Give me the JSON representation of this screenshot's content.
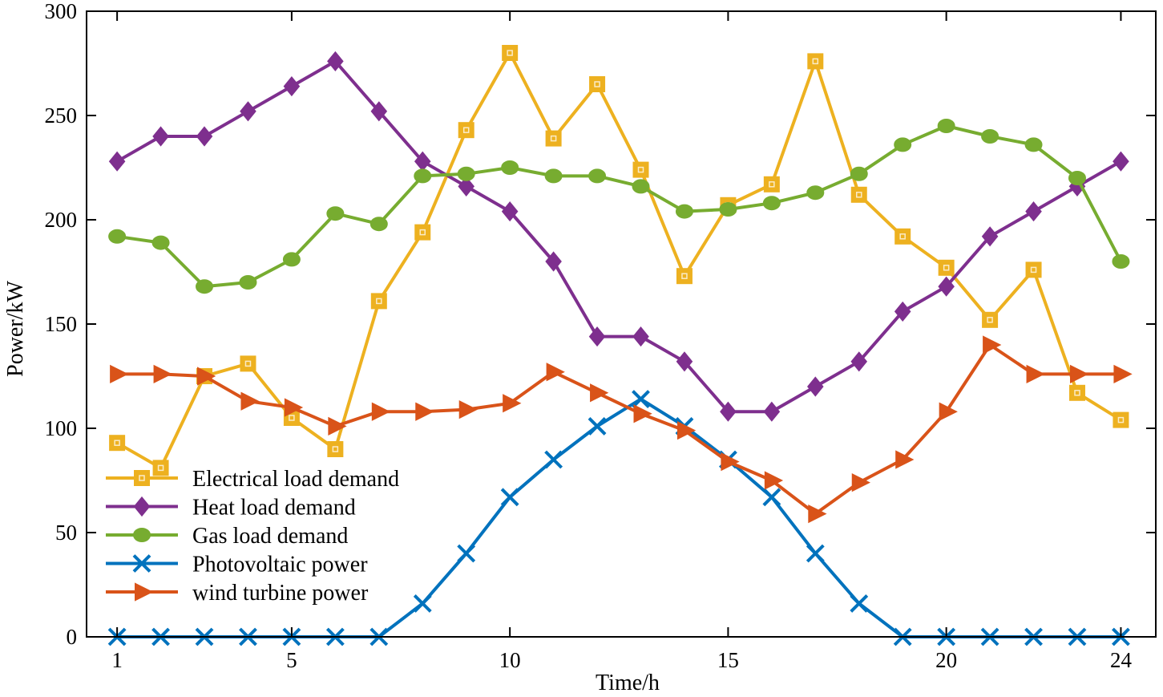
{
  "chart_data": {
    "type": "line",
    "title": "",
    "xlabel": "Time/h",
    "ylabel": "Power/kW",
    "x": [
      1,
      2,
      3,
      4,
      5,
      6,
      7,
      8,
      9,
      10,
      11,
      12,
      13,
      14,
      15,
      16,
      17,
      18,
      19,
      20,
      21,
      22,
      23,
      24
    ],
    "xlim": [
      0.3,
      24.8
    ],
    "ylim": [
      0,
      300
    ],
    "xticks": [
      1,
      5,
      10,
      15,
      20,
      24
    ],
    "yticks": [
      0,
      50,
      100,
      150,
      200,
      250,
      300
    ],
    "grid": false,
    "legend_position": "bottom-left",
    "series": [
      {
        "name": "Electrical load demand",
        "color": "#EDB120",
        "marker": "square",
        "values": [
          93,
          81,
          125,
          131,
          105,
          90,
          161,
          194,
          243,
          280,
          239,
          265,
          224,
          173,
          207,
          217,
          276,
          212,
          192,
          177,
          152,
          176,
          117,
          104
        ]
      },
      {
        "name": "Heat load demand",
        "color": "#7E2F8E",
        "marker": "diamond",
        "values": [
          228,
          240,
          240,
          252,
          264,
          276,
          252,
          228,
          216,
          204,
          180,
          144,
          144,
          132,
          108,
          108,
          120,
          132,
          156,
          168,
          192,
          204,
          216,
          228
        ]
      },
      {
        "name": "Gas load demand",
        "color": "#77AC30",
        "marker": "circle",
        "values": [
          192,
          189,
          168,
          170,
          181,
          203,
          198,
          221,
          222,
          225,
          221,
          221,
          216,
          204,
          205,
          208,
          213,
          222,
          236,
          245,
          240,
          236,
          220,
          180
        ]
      },
      {
        "name": "Photovoltaic power",
        "color": "#0072BD",
        "marker": "x",
        "values": [
          0,
          0,
          0,
          0,
          0,
          0,
          0,
          16,
          40,
          67,
          85,
          101,
          114,
          101,
          85,
          67,
          40,
          16,
          0,
          0,
          0,
          0,
          0,
          0
        ]
      },
      {
        "name": "wind turbine power",
        "color": "#D95319",
        "marker": "triangle-right",
        "values": [
          126,
          126,
          125,
          113,
          110,
          101,
          108,
          108,
          109,
          112,
          127,
          117,
          107,
          99,
          84,
          75,
          59,
          74,
          85,
          108,
          140,
          126,
          126,
          126
        ]
      }
    ]
  }
}
